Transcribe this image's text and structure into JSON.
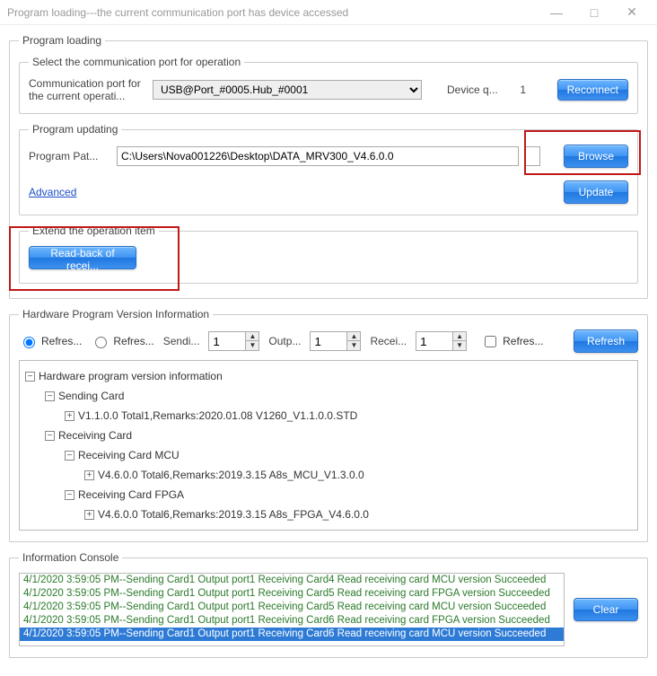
{
  "window": {
    "title": "Program loading---the current communication port has device accessed"
  },
  "program_loading": {
    "legend": "Program loading",
    "select_port_legend": "Select the communication port for operation",
    "comm_port_label": "Communication port for the current operati...",
    "comm_port_value": "USB@Port_#0005.Hub_#0001",
    "device_q_label": "Device q...",
    "device_q_value": "1",
    "reconnect_btn": "Reconnect",
    "updating_legend": "Program updating",
    "program_path_label": "Program Pat...",
    "program_path_value": "C:\\Users\\Nova001226\\Desktop\\DATA_MRV300_V4.6.0.0",
    "browse_btn": "Browse",
    "advanced_link": "Advanced",
    "update_btn": "Update",
    "extend_legend": "Extend the operation item",
    "readback_btn": "Read-back of recei..."
  },
  "hw_version": {
    "legend": "Hardware Program Version Information",
    "radio_refres1": "Refres...",
    "radio_refres2": "Refres...",
    "sendi_label": "Sendi...",
    "sendi_value": "1",
    "outp_label": "Outp...",
    "outp_value": "1",
    "recei_label": "Recei...",
    "recei_value": "1",
    "refres_check": "Refres...",
    "refresh_btn": "Refresh",
    "tree": {
      "root": "Hardware program version information",
      "sending_card": "Sending Card",
      "sending_card_v": "V1.1.0.0 Total1,Remarks:2020.01.08 V1260_V1.1.0.0.STD",
      "receiving_card": "Receiving Card",
      "rc_mcu": "Receiving Card MCU",
      "rc_mcu_v": "V4.6.0.0 Total6,Remarks:2019.3.15 A8s_MCU_V1.3.0.0",
      "rc_fpga": "Receiving Card FPGA",
      "rc_fpga_v": "V4.6.0.0 Total6,Remarks:2019.3.15 A8s_FPGA_V4.6.0.0"
    }
  },
  "console": {
    "legend": "Information Console",
    "clear_btn": "Clear",
    "lines": [
      "4/1/2020 3:59:05 PM--Sending Card1 Output port1 Receiving Card4 Read receiving card MCU version Succeeded",
      "4/1/2020 3:59:05 PM--Sending Card1 Output port1 Receiving Card5 Read receiving card FPGA version Succeeded",
      "4/1/2020 3:59:05 PM--Sending Card1 Output port1 Receiving Card5 Read receiving card MCU version Succeeded",
      "4/1/2020 3:59:05 PM--Sending Card1 Output port1 Receiving Card6 Read receiving card FPGA version Succeeded",
      "4/1/2020 3:59:05 PM--Sending Card1 Output port1 Receiving Card6 Read receiving card MCU version Succeeded"
    ],
    "selected_index": 4
  },
  "colors": {
    "highlight_red": "#c01818",
    "link_blue": "#1a4ec8",
    "console_green": "#2a7a2a",
    "selection_blue": "#2e7bd6"
  }
}
